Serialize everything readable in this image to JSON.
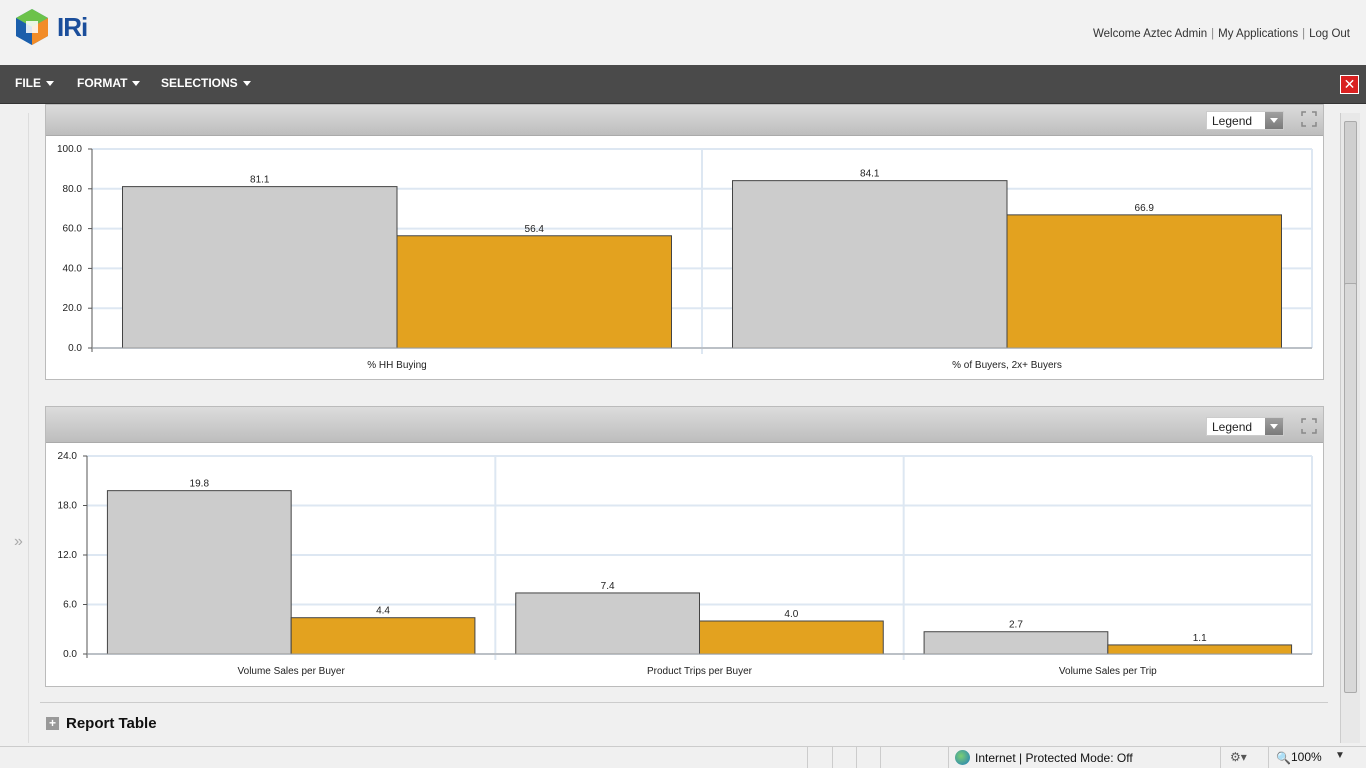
{
  "header": {
    "brand": "IRi",
    "welcome": "Welcome Aztec Admin",
    "my_applications": "My Applications",
    "logout": "Log Out"
  },
  "menu": {
    "file": "FILE",
    "format": "FORMAT",
    "selections": "SELECTIONS"
  },
  "panels": {
    "top": {
      "legend_label": "Legend"
    },
    "bottom": {
      "legend_label": "Legend"
    }
  },
  "report_table": {
    "label": "Report Table",
    "expander": "+"
  },
  "statusbar": {
    "zone": "Internet | Protected Mode: Off",
    "zoom": "100%"
  },
  "colors": {
    "series_a": "#cccccc",
    "series_b": "#e3a21f",
    "grid": "#dde7f2"
  },
  "chart_data": [
    {
      "type": "bar",
      "categories": [
        "% HH Buying",
        "% of Buyers, 2x+ Buyers"
      ],
      "series": [
        {
          "values": [
            81.1,
            84.1
          ]
        },
        {
          "values": [
            56.4,
            66.9
          ]
        }
      ],
      "yticks": [
        "0.0",
        "20.0",
        "40.0",
        "60.0",
        "80.0",
        "100.0"
      ],
      "ylim": [
        0,
        100
      ],
      "grid": true
    },
    {
      "type": "bar",
      "categories": [
        "Volume Sales per Buyer",
        "Product Trips per Buyer",
        "Volume Sales per Trip"
      ],
      "series": [
        {
          "values": [
            19.8,
            7.4,
            2.7
          ]
        },
        {
          "values": [
            4.4,
            4.0,
            1.1
          ]
        }
      ],
      "yticks": [
        "0.0",
        "6.0",
        "12.0",
        "18.0",
        "24.0"
      ],
      "ylim": [
        0,
        24
      ],
      "grid": true
    }
  ]
}
